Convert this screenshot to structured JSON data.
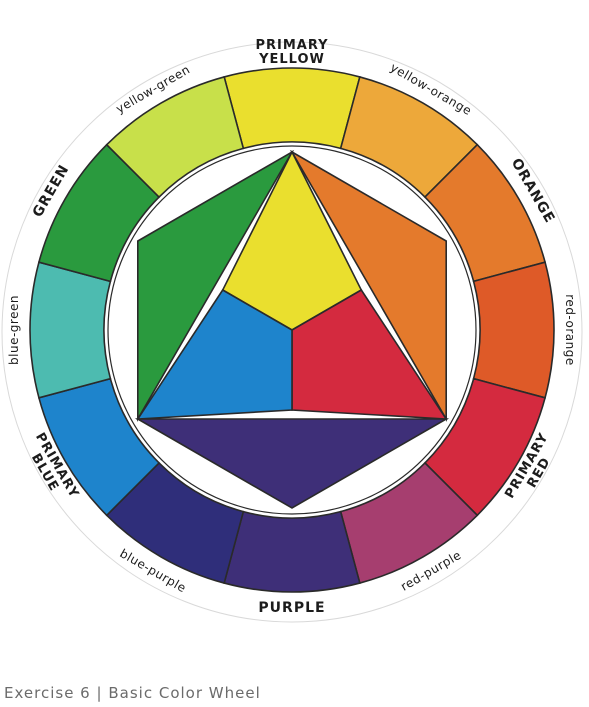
{
  "colors": {
    "paper": "#ffffff",
    "outline": "#2a2a2a",
    "yellow": "#eadf2e",
    "yellow_orange": "#eda83a",
    "orange": "#e47a2c",
    "red_orange": "#de5a28",
    "red": "#d42a3f",
    "red_purple": "#a63e6f",
    "purple": "#3e2f78",
    "blue_purple": "#2f2e7a",
    "blue": "#1e84cc",
    "blue_green": "#4dbbb0",
    "green": "#2a9a3e",
    "yellow_green": "#c8e04a"
  },
  "wheel": {
    "segments": [
      {
        "name": "yellow",
        "label": "PRIMARY\nYELLOW",
        "color_key": "yellow"
      },
      {
        "name": "yellow-orange",
        "label": "yellow-orange",
        "color_key": "yellow_orange"
      },
      {
        "name": "orange",
        "label": "ORANGE",
        "color_key": "orange"
      },
      {
        "name": "red-orange",
        "label": "red-orange",
        "color_key": "red_orange"
      },
      {
        "name": "red",
        "label": "PRIMARY\nRED",
        "color_key": "red"
      },
      {
        "name": "red-purple",
        "label": "red-purple",
        "color_key": "red_purple"
      },
      {
        "name": "purple",
        "label": "PURPLE",
        "color_key": "purple"
      },
      {
        "name": "blue-purple",
        "label": "blue-purple",
        "color_key": "blue_purple"
      },
      {
        "name": "blue",
        "label": "PRIMARY\nBLUE",
        "color_key": "blue"
      },
      {
        "name": "blue-green",
        "label": "blue-green",
        "color_key": "blue_green"
      },
      {
        "name": "green",
        "label": "GREEN",
        "color_key": "green"
      },
      {
        "name": "yellow-green",
        "label": "yellow-green",
        "color_key": "yellow_green"
      }
    ]
  },
  "inner": {
    "center_triangle": [
      "yellow",
      "red",
      "blue"
    ],
    "outer_triangles": [
      "orange",
      "purple",
      "green"
    ]
  },
  "caption": {
    "exercise": "Exercise 6",
    "separator": "|",
    "title": "Basic Color Wheel"
  }
}
